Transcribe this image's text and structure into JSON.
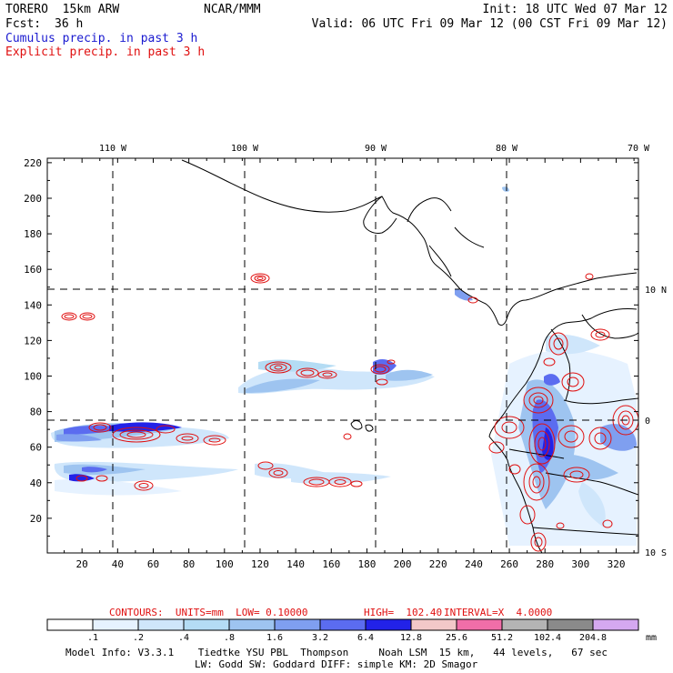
{
  "header": {
    "model": "TORERO  15km ARW",
    "org": "NCAR/MMM",
    "init": "Init: 18 UTC Wed 07 Mar 12",
    "fcst_label": "Fcst:",
    "fcst_value": "36 h",
    "valid": "Valid: 06 UTC Fri 09 Mar 12 (00 CST Fri 09 Mar 12)",
    "cumulus": "Cumulus precip. in past 3 h",
    "explicit": "Explicit precip. in past 3 h"
  },
  "map": {
    "top_lon_labels": [
      "110 W",
      "100 W",
      "90 W",
      "80 W",
      "70 W"
    ],
    "right_lat_labels": [
      "10 N",
      "0",
      "10 S"
    ],
    "y_ticks": [
      "220",
      "200",
      "180",
      "160",
      "140",
      "120",
      "100",
      "80",
      "60",
      "40",
      "20"
    ],
    "x_ticks": [
      "20",
      "40",
      "60",
      "80",
      "100",
      "120",
      "140",
      "160",
      "180",
      "200",
      "220",
      "240",
      "260",
      "280",
      "300",
      "320"
    ]
  },
  "contours": {
    "units_label": "CONTOURS:  UNITS=mm  LOW= 0.10000",
    "high_label": "HIGH=  102.40",
    "interval_label": "INTERVAL=X  4.0000"
  },
  "legend": {
    "colors": [
      "#ffffff",
      "#e6f2ff",
      "#cfe6fb",
      "#b4dcf4",
      "#9ec4f0",
      "#7f9ff0",
      "#5b6cf0",
      "#2222e8",
      "#f2c8c8",
      "#f06ea8",
      "#b4b4b4",
      "#8a8a8a",
      "#d5a8f0"
    ],
    "labels": [
      ".1",
      ".2",
      ".4",
      ".8",
      "1.6",
      "3.2",
      "6.4",
      "12.8",
      "25.6",
      "51.2",
      "102.4",
      "204.8"
    ],
    "unit": "mm"
  },
  "footer": {
    "line1": "Model Info: V3.3.1    Tiedtke YSU PBL  Thompson     Noah LSM  15 km,   44 levels,   67 sec",
    "line2": "LW: Godd SW: Goddard DIFF: simple KM: 2D Smagor"
  }
}
